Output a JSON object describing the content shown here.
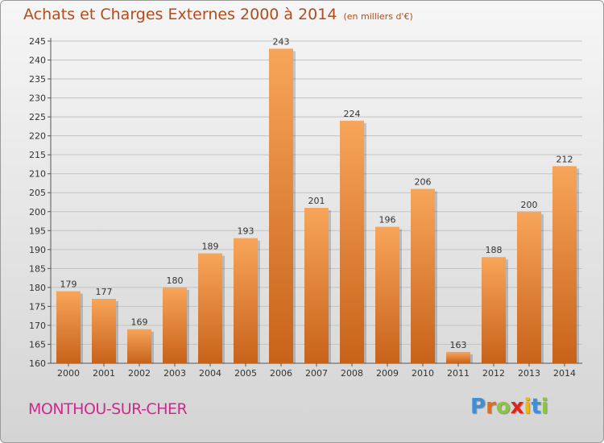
{
  "title": "Achats et Charges Externes 2000 à 2014",
  "unit_label": "(en milliers d'€)",
  "commune": "MONTHOU-SUR-CHER",
  "logo": {
    "letters": [
      "P",
      "r",
      "o",
      "x",
      "i",
      "t",
      "i"
    ],
    "colors": [
      "#3f8fd8",
      "#e86a1a",
      "#8cc63f",
      "#e2231a",
      "#f2b500",
      "#3f8fd8",
      "#8cc63f"
    ]
  },
  "colors": {
    "bar_light": "#f7a55a",
    "bar_dark": "#c8621a",
    "title": "#b34b1a",
    "commune": "#cc2a8e"
  },
  "chart_data": {
    "type": "bar",
    "categories": [
      "2000",
      "2001",
      "2002",
      "2003",
      "2004",
      "2005",
      "2006",
      "2007",
      "2008",
      "2009",
      "2010",
      "2011",
      "2012",
      "2013",
      "2014"
    ],
    "values": [
      179,
      177,
      169,
      180,
      189,
      193,
      243,
      201,
      224,
      196,
      206,
      163,
      188,
      200,
      212
    ],
    "ylim": [
      160,
      245
    ],
    "yticks": [
      160,
      165,
      170,
      175,
      180,
      185,
      190,
      195,
      200,
      205,
      210,
      215,
      220,
      225,
      230,
      235,
      240,
      245
    ],
    "grid": true,
    "title": "Achats et Charges Externes 2000 à 2014",
    "xlabel": "",
    "ylabel": ""
  }
}
